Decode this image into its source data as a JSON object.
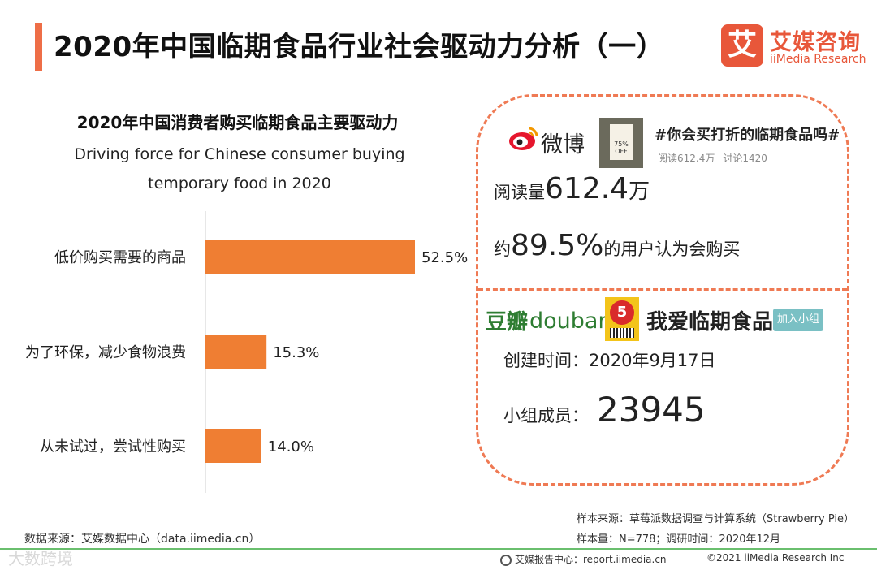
{
  "header": {
    "title": "2020年中国临期食品行业社会驱动力分析（一）",
    "accent_color": "#ee6e47"
  },
  "logo": {
    "mark": "艾",
    "name": "艾媒咨询",
    "sub": "iiMedia Research",
    "color": "#e8573a"
  },
  "chart_data": {
    "type": "bar",
    "orientation": "horizontal",
    "title": "2020年中国消费者购买临期食品主要驱动力",
    "subtitle": "Driving force for Chinese consumer buying temporary food in 2020",
    "categories": [
      "低价购买需要的商品",
      "为了环保，减少食物浪费",
      "从未试过，尝试性购买"
    ],
    "values": [
      52.5,
      15.3,
      14.0
    ],
    "data_labels": [
      "52.5%",
      "15.3%",
      "14.0%"
    ],
    "unit": "%",
    "bar_color": "#ef7e33",
    "xlim": [
      0,
      60
    ],
    "grid": false,
    "legend": "none"
  },
  "weibo": {
    "logo_text": "微博",
    "logo_icon": "weibo-eye-icon",
    "thumb_text": "75% OFF",
    "topic": "#你会买打折的临期食品吗#",
    "stats_reads": "阅读612.4万",
    "stats_discuss": "讨论1420",
    "read_label": "阅读量",
    "read_value": "612.4",
    "read_unit": "万",
    "pct_pre": "约",
    "pct_value": "89.5%",
    "pct_post": "的用户认为会购买"
  },
  "douban": {
    "logo_cn": "豆瓣",
    "logo_en": "douban",
    "thumb_num": "5",
    "group_name": "我爱临期食品",
    "join_label": "加入小组",
    "created": "创建时间：2020年9月17日",
    "members_label": "小组成员：",
    "members_value": "23945"
  },
  "footer": {
    "source": "数据来源：艾媒数据中心（data.iimedia.cn）",
    "sample_source": "样本来源：草莓派数据调查与计算系统（Strawberry Pie）",
    "sample_size": "样本量：N=778；调研时间：2020年12月",
    "center": "艾媒报告中心：report.iimedia.cn",
    "copyright": "©2021  iiMedia Research  Inc",
    "watermark": "大数跨境",
    "line_color": "#6abf6e"
  }
}
